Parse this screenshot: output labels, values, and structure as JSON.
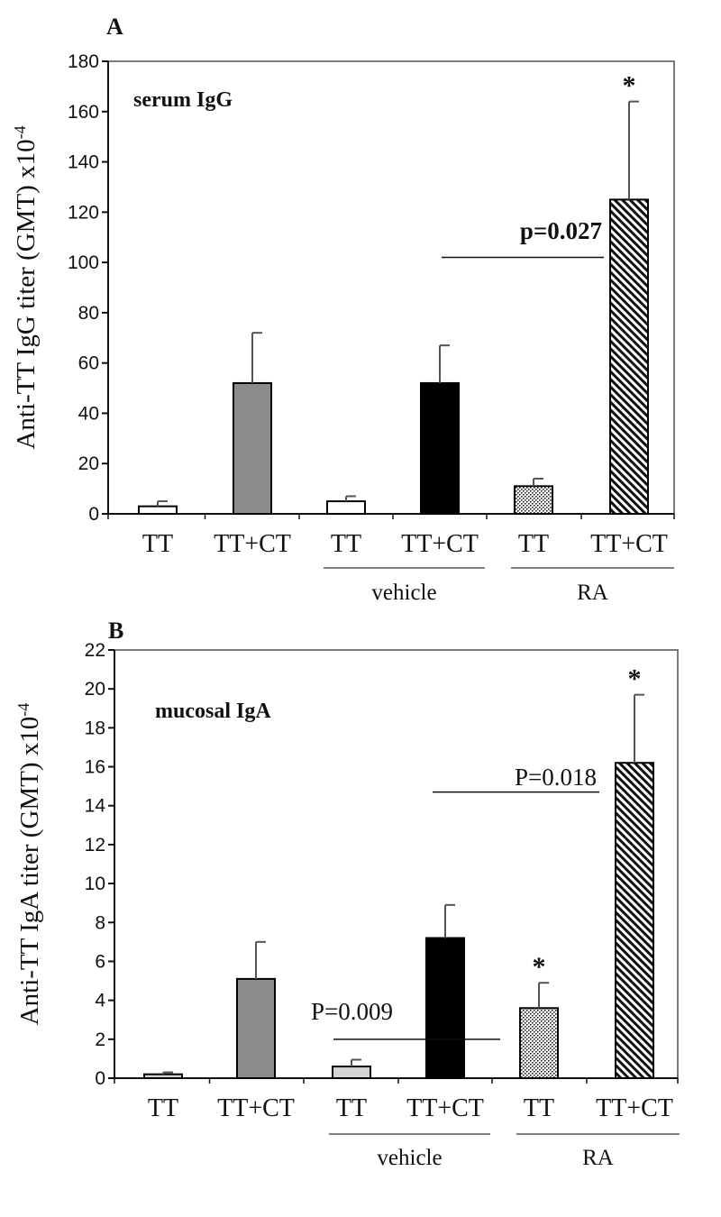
{
  "chart_data": [
    {
      "panel": "A",
      "type": "bar",
      "title": "serum  IgG",
      "ylabel": "Anti-TT IgG titer (GMT) x10",
      "ylabel_exponent": "-4",
      "ylim": [
        0,
        180
      ],
      "yticks": [
        "0",
        "20",
        "40",
        "60",
        "80",
        "100",
        "120",
        "140",
        "160",
        "180"
      ],
      "categories": [
        "TT",
        "TT+CT",
        "TT",
        "TT+CT",
        "TT",
        "TT+CT"
      ],
      "values": [
        3,
        52,
        5,
        52,
        11,
        125
      ],
      "errors": [
        2,
        20,
        2,
        15,
        3,
        39
      ],
      "fills": [
        "white",
        "gray",
        "white",
        "black",
        "dots",
        "hatch"
      ],
      "significance": [
        "",
        "",
        "",
        "",
        "",
        "*"
      ],
      "groups": [
        {
          "label": "vehicle",
          "from": 2,
          "to": 3
        },
        {
          "label": "RA",
          "from": 4,
          "to": 5
        }
      ],
      "comparisons": [
        {
          "label": "p=0.027",
          "from": 3,
          "to": 5,
          "y": 102
        }
      ]
    },
    {
      "panel": "B",
      "type": "bar",
      "title": "mucosal IgA",
      "ylabel": "Anti-TT IgA titer (GMT) x10",
      "ylabel_exponent": "-4",
      "ylim": [
        0,
        22
      ],
      "yticks": [
        "0",
        "2",
        "4",
        "6",
        "8",
        "10",
        "12",
        "14",
        "16",
        "18",
        "20",
        "22"
      ],
      "categories": [
        "TT",
        "TT+CT",
        "TT",
        "TT+CT",
        "TT",
        "TT+CT"
      ],
      "values": [
        0.2,
        5.1,
        0.6,
        7.2,
        3.6,
        16.2
      ],
      "errors": [
        0.1,
        1.9,
        0.35,
        1.7,
        1.3,
        3.5
      ],
      "fills": [
        "light",
        "gray",
        "light",
        "black",
        "dots",
        "hatch"
      ],
      "significance": [
        "",
        "",
        "",
        "",
        "*",
        "*"
      ],
      "groups": [
        {
          "label": "vehicle",
          "from": 2,
          "to": 3
        },
        {
          "label": "RA",
          "from": 4,
          "to": 5
        }
      ],
      "comparisons": [
        {
          "label": "P=0.009",
          "from": 2,
          "to": 3,
          "y": 2
        },
        {
          "label": "P=0.018",
          "from": 3,
          "to": 5,
          "y": 14.7
        }
      ]
    }
  ]
}
